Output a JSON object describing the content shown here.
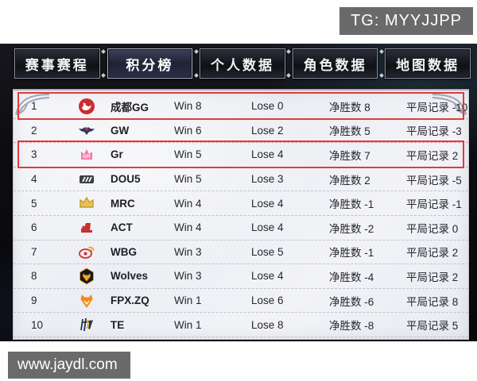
{
  "watermarks": {
    "tg": "TG: MYYJJPP",
    "site": "www.jaydl.com"
  },
  "tabs": [
    {
      "label": "赛事赛程",
      "active": false
    },
    {
      "label": "积分榜",
      "active": true
    },
    {
      "label": "个人数据",
      "active": false
    },
    {
      "label": "角色数据",
      "active": false
    },
    {
      "label": "地图数据",
      "active": false
    }
  ],
  "standings": {
    "rows": [
      {
        "rank": "1",
        "team": "成都GG",
        "logo": "chengdu-gg",
        "win": "Win 8",
        "lose": "Lose 0",
        "net": "净胜数 8",
        "draw": "平局记录 -10",
        "highlighted": true
      },
      {
        "rank": "2",
        "team": "GW",
        "logo": "gw",
        "win": "Win 6",
        "lose": "Lose 2",
        "net": "净胜数 5",
        "draw": "平局记录 -3",
        "highlighted": false
      },
      {
        "rank": "3",
        "team": "Gr",
        "logo": "gr",
        "win": "Win 5",
        "lose": "Lose 4",
        "net": "净胜数 7",
        "draw": "平局记录 2",
        "highlighted": true
      },
      {
        "rank": "4",
        "team": "DOU5",
        "logo": "dou5",
        "win": "Win 5",
        "lose": "Lose 3",
        "net": "净胜数 2",
        "draw": "平局记录 -5",
        "highlighted": false
      },
      {
        "rank": "5",
        "team": "MRC",
        "logo": "mrc",
        "win": "Win 4",
        "lose": "Lose 4",
        "net": "净胜数 -1",
        "draw": "平局记录 -1",
        "highlighted": false
      },
      {
        "rank": "6",
        "team": "ACT",
        "logo": "act",
        "win": "Win 4",
        "lose": "Lose 4",
        "net": "净胜数 -2",
        "draw": "平局记录 0",
        "highlighted": false
      },
      {
        "rank": "7",
        "team": "WBG",
        "logo": "wbg",
        "win": "Win 3",
        "lose": "Lose 5",
        "net": "净胜数 -1",
        "draw": "平局记录 2",
        "highlighted": false
      },
      {
        "rank": "8",
        "team": "Wolves",
        "logo": "wolves",
        "win": "Win 3",
        "lose": "Lose 4",
        "net": "净胜数 -4",
        "draw": "平局记录 2",
        "highlighted": false
      },
      {
        "rank": "9",
        "team": "FPX.ZQ",
        "logo": "fpx",
        "win": "Win 1",
        "lose": "Lose 6",
        "net": "净胜数 -6",
        "draw": "平局记录 8",
        "highlighted": false
      },
      {
        "rank": "10",
        "team": "TE",
        "logo": "te",
        "win": "Win 1",
        "lose": "Lose 8",
        "net": "净胜数 -8",
        "draw": "平局记录 5",
        "highlighted": false
      }
    ]
  },
  "colors": {
    "highlight_red": "#e23b3b",
    "badge_gray": "#6a6a6a",
    "paper": "#eff1f5",
    "tab_bar_dark": "#0c0c11"
  }
}
